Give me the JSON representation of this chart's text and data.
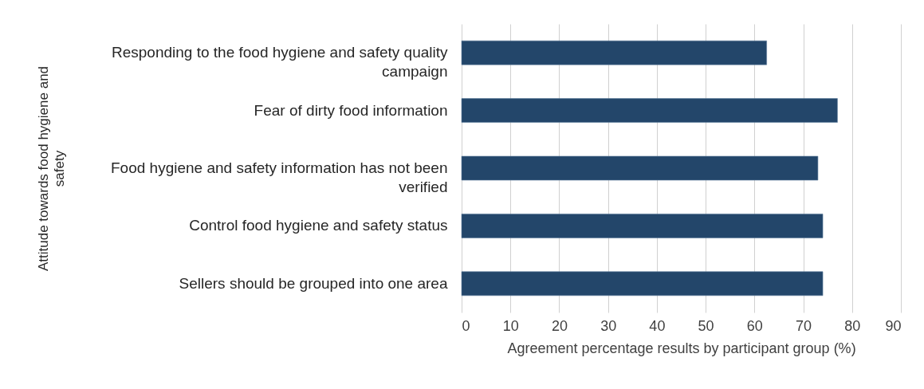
{
  "chart_data": {
    "type": "bar",
    "orientation": "horizontal",
    "categories": [
      "Responding to the food hygiene and safety quality campaign",
      "Fear of dirty food information",
      "Food hygiene and safety information has not been verified",
      "Control food hygiene and safety status",
      "Sellers should be grouped into one area"
    ],
    "values": [
      62.5,
      77,
      73,
      74,
      74
    ],
    "color": "#23466a",
    "xlim": [
      0,
      90
    ],
    "xticks": [
      0,
      10,
      20,
      30,
      40,
      50,
      60,
      70,
      80,
      90
    ],
    "grid": "x",
    "xlabel": "Agreement percentage results by participant group (%)",
    "ylabel": "Attitude towards food hygiene and safety"
  }
}
